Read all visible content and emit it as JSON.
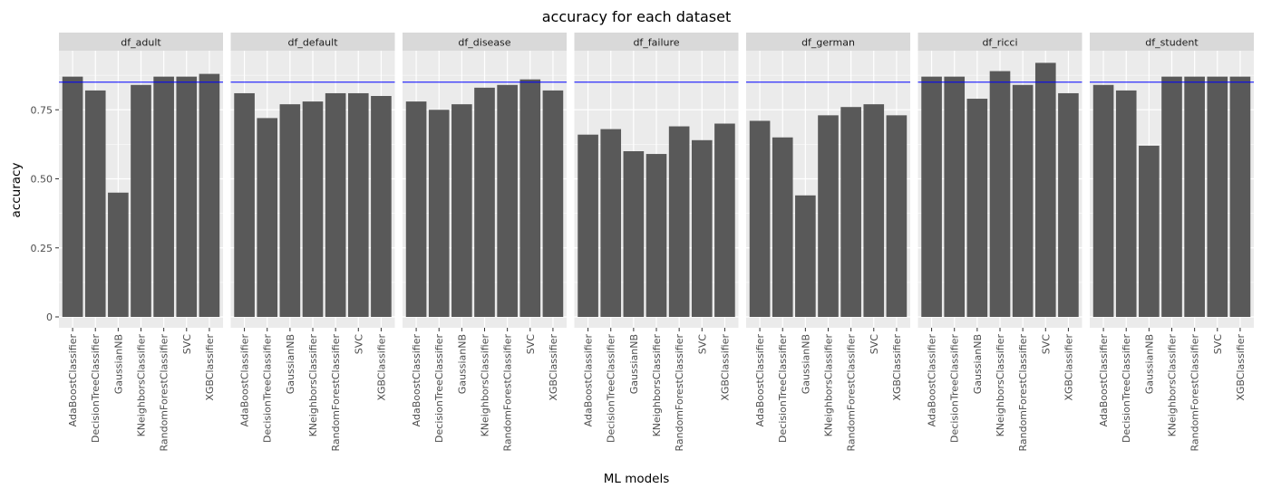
{
  "chart_data": {
    "type": "bar",
    "title": "accuracy for each dataset",
    "xlabel": "ML models",
    "ylabel": "accuracy",
    "ylim": [
      0,
      1
    ],
    "yticks": [
      0,
      0.25,
      0.5,
      0.75
    ],
    "ytick_labels": [
      "0",
      "0.25",
      "0.50",
      "0.75"
    ],
    "grid": true,
    "reference_line": {
      "y": 0.85,
      "color": "#0000ff"
    },
    "bar_color": "#595959",
    "panel_background": "#ebebeb",
    "strip_background": "#d9d9d9",
    "categories": [
      "AdaBoostClassifier",
      "DecisionTreeClassifier",
      "GaussianNB",
      "KNeighborsClassifier",
      "RandomForestClassifier",
      "SVC",
      "XGBClassifier"
    ],
    "facets": [
      {
        "name": "df_adult",
        "values": [
          0.87,
          0.82,
          0.45,
          0.84,
          0.87,
          0.87,
          0.88
        ]
      },
      {
        "name": "df_default",
        "values": [
          0.81,
          0.72,
          0.77,
          0.78,
          0.81,
          0.81,
          0.8
        ]
      },
      {
        "name": "df_disease",
        "values": [
          0.78,
          0.75,
          0.77,
          0.83,
          0.84,
          0.86,
          0.82
        ]
      },
      {
        "name": "df_failure",
        "values": [
          0.66,
          0.68,
          0.6,
          0.59,
          0.69,
          0.64,
          0.7
        ]
      },
      {
        "name": "df_german",
        "values": [
          0.71,
          0.65,
          0.44,
          0.73,
          0.76,
          0.77,
          0.73
        ]
      },
      {
        "name": "df_ricci",
        "values": [
          0.87,
          0.87,
          0.79,
          0.89,
          0.84,
          0.92,
          0.81
        ]
      },
      {
        "name": "df_student",
        "values": [
          0.84,
          0.82,
          0.62,
          0.87,
          0.87,
          0.87,
          0.87
        ]
      }
    ]
  }
}
